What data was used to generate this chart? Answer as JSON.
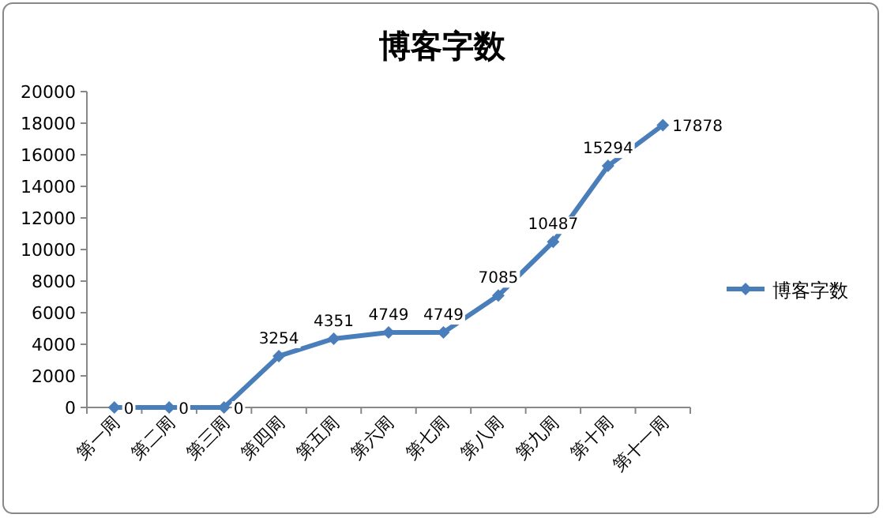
{
  "chart_data": {
    "type": "line",
    "title": "博客字数",
    "categories": [
      "第一周",
      "第二周",
      "第三周",
      "第四周",
      "第五周",
      "第六周",
      "第七周",
      "第八周",
      "第九周",
      "第十周",
      "第十一周"
    ],
    "series": [
      {
        "name": "博客字数",
        "color": "#4a7ebb",
        "values": [
          0,
          0,
          0,
          3254,
          4351,
          4749,
          4749,
          7085,
          10487,
          15294,
          17878
        ]
      }
    ],
    "ylim": [
      0,
      20000
    ],
    "yticks": [
      0,
      2000,
      4000,
      6000,
      8000,
      10000,
      12000,
      14000,
      16000,
      18000,
      20000
    ],
    "data_labels": true,
    "marker": "diamond",
    "legend": "right"
  }
}
